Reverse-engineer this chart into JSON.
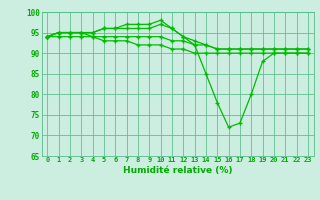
{
  "xlabel": "Humidité relative (%)",
  "background_color": "#cceee0",
  "grid_color": "#55bb88",
  "line_color": "#00bb00",
  "tick_color": "#00aa00",
  "xlim": [
    -0.5,
    23.5
  ],
  "ylim": [
    65,
    100
  ],
  "yticks": [
    65,
    70,
    75,
    80,
    85,
    90,
    95,
    100
  ],
  "xticks": [
    0,
    1,
    2,
    3,
    4,
    5,
    6,
    7,
    8,
    9,
    10,
    11,
    12,
    13,
    14,
    15,
    16,
    17,
    18,
    19,
    20,
    21,
    22,
    23
  ],
  "series": [
    [
      94,
      95,
      95,
      95,
      95,
      96,
      96,
      97,
      97,
      97,
      98,
      96,
      94,
      92,
      85,
      78,
      72,
      73,
      80,
      88,
      90,
      90,
      90,
      90
    ],
    [
      94,
      95,
      95,
      95,
      95,
      96,
      96,
      96,
      96,
      96,
      97,
      96,
      94,
      93,
      92,
      91,
      91,
      91,
      91,
      91,
      91,
      91,
      91,
      91
    ],
    [
      94,
      95,
      95,
      95,
      94,
      94,
      94,
      94,
      94,
      94,
      94,
      93,
      93,
      92,
      92,
      91,
      91,
      91,
      91,
      91,
      91,
      91,
      91,
      91
    ],
    [
      94,
      94,
      94,
      94,
      94,
      93,
      93,
      93,
      92,
      92,
      92,
      91,
      91,
      90,
      90,
      90,
      90,
      90,
      90,
      90,
      90,
      90,
      90,
      90
    ]
  ]
}
